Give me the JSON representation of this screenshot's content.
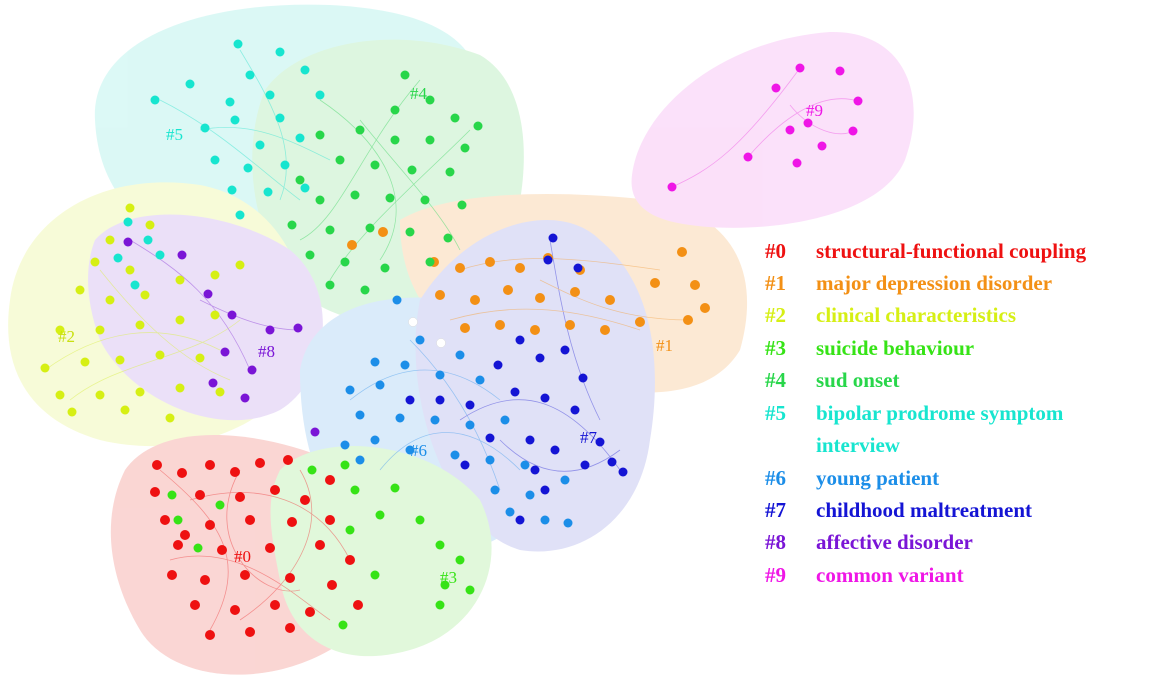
{
  "clusters": [
    {
      "id": "#0",
      "name": "structural-functional coupling",
      "color": "#ee1111",
      "hull": "#f6b5b0"
    },
    {
      "id": "#1",
      "name": "major depression disorder",
      "color": "#f39015",
      "hull": "#fbd8b2"
    },
    {
      "id": "#2",
      "name": "clinical characteristics",
      "color": "#d6ef14",
      "hull": "#f2f9b9"
    },
    {
      "id": "#3",
      "name": "suicide behaviour",
      "color": "#36e316",
      "hull": "#c9f3bf"
    },
    {
      "id": "#4",
      "name": "sud onset",
      "color": "#28d64a",
      "hull": "#c3f0c8"
    },
    {
      "id": "#5",
      "name": "bipolar prodrome symptom",
      "name2": "interview",
      "color": "#17e5cf",
      "hull": "#bff4ee"
    },
    {
      "id": "#6",
      "name": "young patient",
      "color": "#1c8ee8",
      "hull": "#bcdcf6"
    },
    {
      "id": "#7",
      "name": "childhood maltreatment",
      "color": "#1414d4",
      "hull": "#c7c9f1"
    },
    {
      "id": "#8",
      "name": "affective disorder",
      "color": "#7a15d6",
      "hull": "#dcc8f3"
    },
    {
      "id": "#9",
      "name": "common variant",
      "color": "#ef16e6",
      "hull": "#f8c8f5"
    }
  ]
}
